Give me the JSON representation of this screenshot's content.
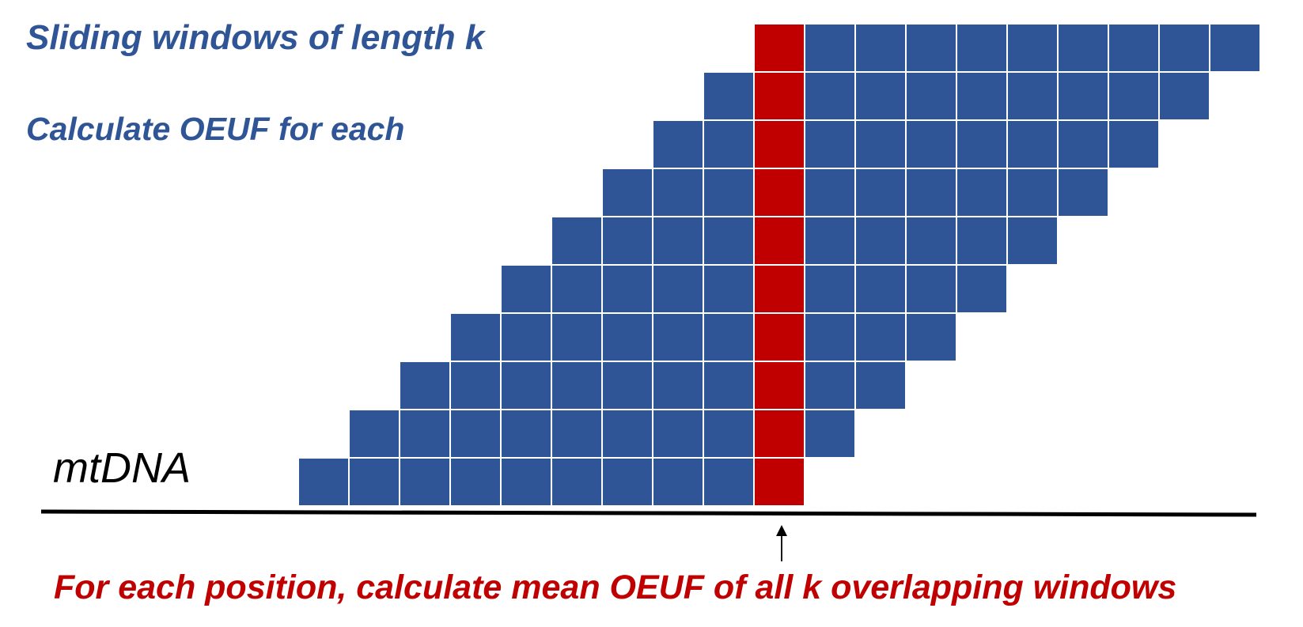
{
  "headings": {
    "line1": "Sliding windows of length k",
    "line2": "Calculate OEUF for each"
  },
  "genome_label": "mtDNA",
  "caption": "For each position, calculate mean OEUF of all k overlapping windows",
  "windows": {
    "count": 10,
    "length_k": 10,
    "step": 1,
    "highlight_column": 9
  },
  "colors": {
    "heading": "#2f5597",
    "window_cell": "#2f5597",
    "highlight_cell": "#c00000",
    "caption": "#c00000",
    "genome_line": "#000000",
    "arrow": "#000000"
  }
}
